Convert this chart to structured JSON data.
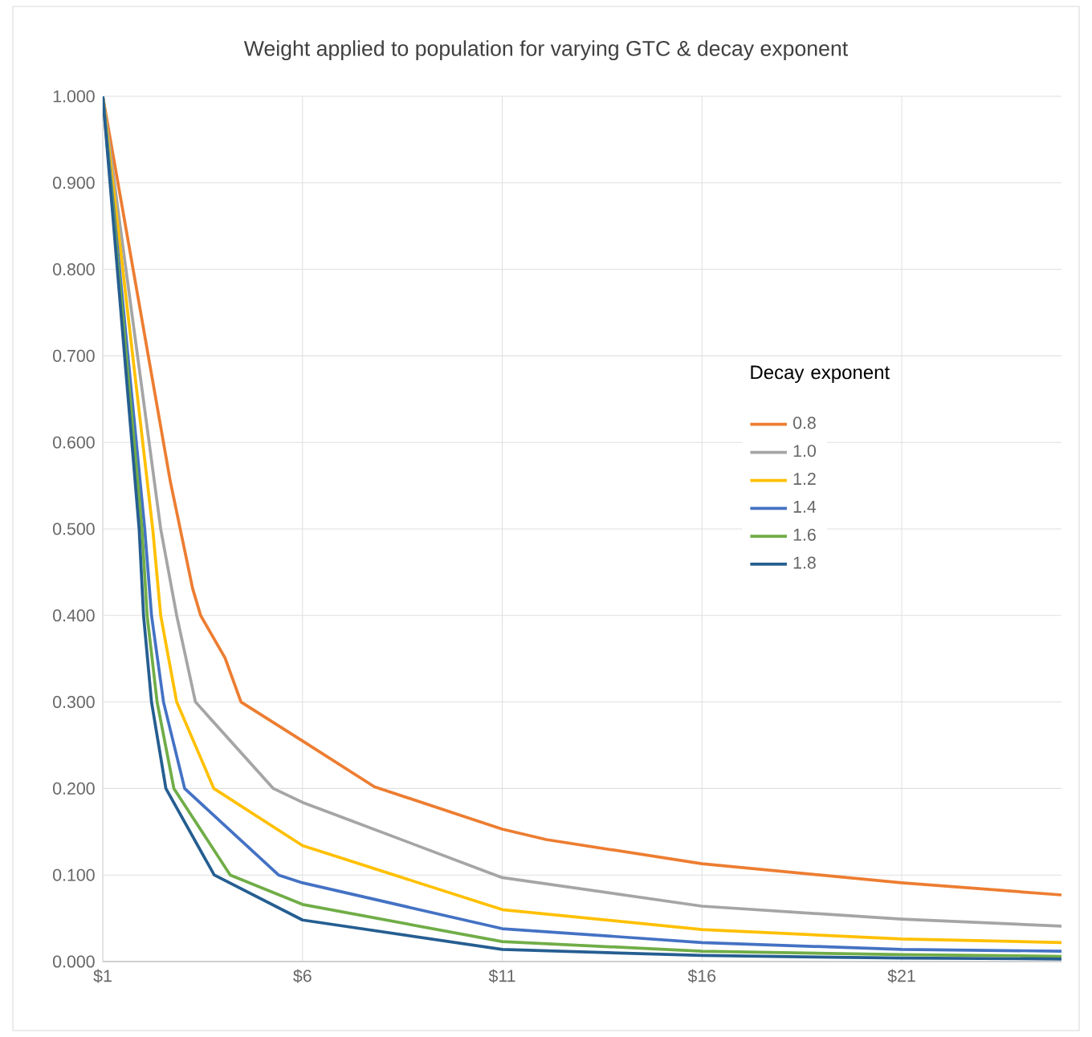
{
  "chart_data": {
    "type": "line",
    "title": "Weight applied to population for varying GTC & decay exponent",
    "legend_title": "Decay exponent",
    "xlim": [
      1,
      25
    ],
    "ylim": [
      0,
      1
    ],
    "xticks": [
      {
        "value": 1,
        "label": "$1"
      },
      {
        "value": 6,
        "label": "$6"
      },
      {
        "value": 11,
        "label": "$11"
      },
      {
        "value": 16,
        "label": "$16"
      },
      {
        "value": 21,
        "label": "$21"
      }
    ],
    "yticks": [
      {
        "value": 0,
        "label": "0.000"
      },
      {
        "value": 0.1,
        "label": "0.100"
      },
      {
        "value": 0.2,
        "label": "0.200"
      },
      {
        "value": 0.3,
        "label": "0.300"
      },
      {
        "value": 0.4,
        "label": "0.400"
      },
      {
        "value": 0.5,
        "label": "0.500"
      },
      {
        "value": 0.6,
        "label": "0.600"
      },
      {
        "value": 0.7,
        "label": "0.700"
      },
      {
        "value": 0.8,
        "label": "0.800"
      },
      {
        "value": 0.9,
        "label": "0.900"
      },
      {
        "value": 1,
        "label": "1.000"
      }
    ],
    "grid": true,
    "legend": "right",
    "marker": "none",
    "line_style": "solid",
    "series": [
      {
        "name": "0.8",
        "color": "#ed7d31",
        "x": [
          1,
          2.69,
          3.25,
          3.45,
          4.06,
          4.46,
          6,
          7.8,
          11,
          12.1,
          16,
          21,
          25
        ],
        "values": [
          1,
          0.555,
          0.431,
          0.4,
          0.351,
          0.3,
          0.255,
          0.202,
          0.153,
          0.141,
          0.113,
          0.091,
          0.077
        ]
      },
      {
        "name": "1.0",
        "color": "#a5a5a5",
        "x": [
          1,
          2.45,
          2.85,
          3.32,
          5.27,
          6,
          11,
          16,
          21,
          25
        ],
        "values": [
          1,
          0.5,
          0.4,
          0.3,
          0.2,
          0.184,
          0.097,
          0.064,
          0.049,
          0.041
        ]
      },
      {
        "name": "1.2",
        "color": "#ffc000",
        "x": [
          1,
          2.25,
          2.45,
          2.85,
          3.78,
          6,
          11,
          16,
          21,
          25
        ],
        "values": [
          1,
          0.5,
          0.4,
          0.3,
          0.2,
          0.134,
          0.06,
          0.037,
          0.026,
          0.022
        ]
      },
      {
        "name": "1.4",
        "color": "#4472c4",
        "x": [
          1,
          2.05,
          2.22,
          2.52,
          3.05,
          5.4,
          6,
          11,
          16,
          21,
          25
        ],
        "values": [
          1,
          0.5,
          0.4,
          0.3,
          0.2,
          0.1,
          0.091,
          0.038,
          0.022,
          0.014,
          0.012
        ]
      },
      {
        "name": "1.6",
        "color": "#70ad47",
        "x": [
          1,
          1.98,
          2.11,
          2.36,
          2.78,
          4.19,
          6,
          11,
          16,
          21,
          25
        ],
        "values": [
          1,
          0.5,
          0.4,
          0.3,
          0.2,
          0.1,
          0.066,
          0.023,
          0.012,
          0.008,
          0.006
        ]
      },
      {
        "name": "1.8",
        "color": "#255e91",
        "x": [
          1,
          1.91,
          2.02,
          2.22,
          2.58,
          3.79,
          6,
          11,
          16,
          21,
          25
        ],
        "values": [
          1,
          0.5,
          0.4,
          0.3,
          0.2,
          0.1,
          0.048,
          0.014,
          0.007,
          0.004,
          0.003
        ]
      }
    ]
  }
}
